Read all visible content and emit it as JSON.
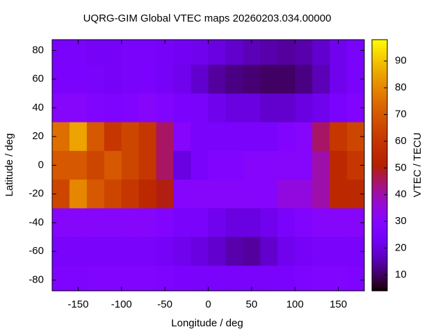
{
  "chart_data": {
    "type": "heatmap",
    "title": "UQRG-GIM Global VTEC maps 20260203.034.00000",
    "x_label": "Longitude / deg",
    "y_label": "Latitude / deg",
    "colorbar_label": "VTEC / TECU",
    "palette": "gnuplot",
    "x": [
      -170,
      -150,
      -130,
      -110,
      -90,
      -70,
      -50,
      -30,
      -10,
      10,
      30,
      50,
      70,
      90,
      110,
      130,
      150,
      170
    ],
    "y": [
      80,
      60,
      40,
      20,
      0,
      -20,
      -40,
      -60,
      -80
    ],
    "z": [
      [
        25,
        25,
        24,
        24,
        25,
        25,
        24,
        23,
        22,
        20,
        18,
        16,
        15,
        14,
        15,
        18,
        22,
        25
      ],
      [
        26,
        26,
        25,
        24,
        25,
        26,
        24,
        22,
        18,
        14,
        12,
        11,
        10,
        10,
        12,
        16,
        22,
        25
      ],
      [
        30,
        30,
        28,
        27,
        28,
        30,
        28,
        26,
        25,
        22,
        20,
        20,
        18,
        18,
        20,
        22,
        26,
        28
      ],
      [
        75,
        85,
        70,
        60,
        65,
        60,
        45,
        30,
        25,
        25,
        25,
        25,
        25,
        28,
        30,
        45,
        60,
        65
      ],
      [
        70,
        70,
        65,
        70,
        65,
        60,
        45,
        20,
        25,
        28,
        28,
        30,
        30,
        30,
        30,
        40,
        55,
        60
      ],
      [
        65,
        80,
        70,
        65,
        60,
        55,
        50,
        30,
        30,
        30,
        30,
        30,
        30,
        35,
        35,
        40,
        55,
        55
      ],
      [
        30,
        30,
        30,
        30,
        30,
        30,
        28,
        25,
        25,
        22,
        20,
        20,
        22,
        25,
        28,
        30,
        30,
        30
      ],
      [
        25,
        25,
        25,
        25,
        25,
        25,
        24,
        22,
        20,
        18,
        15,
        14,
        18,
        22,
        24,
        25,
        25,
        25
      ],
      [
        27,
        27,
        28,
        28,
        28,
        28,
        27,
        26,
        25,
        25,
        25,
        25,
        25,
        26,
        27,
        28,
        28,
        27
      ]
    ],
    "xlim": [
      -180,
      180
    ],
    "ylim": [
      -87.5,
      87.5
    ],
    "clim": [
      4,
      98
    ],
    "xticks": [
      -150,
      -100,
      -50,
      0,
      50,
      100,
      150
    ],
    "yticks": [
      -80,
      -60,
      -40,
      -20,
      0,
      20,
      40,
      60,
      80
    ],
    "cticks": [
      10,
      20,
      30,
      40,
      50,
      60,
      70,
      80,
      90
    ]
  }
}
